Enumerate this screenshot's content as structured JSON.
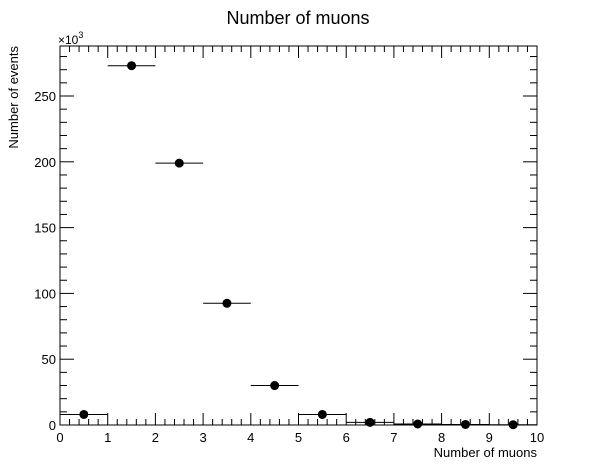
{
  "chart_data": {
    "type": "scatter",
    "title": "Number of muons",
    "xlabel": "Number of muons",
    "ylabel": "Number of events",
    "y_multiplier_base": "×10",
    "y_multiplier_exp": "3",
    "xlim": [
      0,
      10
    ],
    "ylim": [
      0,
      288
    ],
    "x_ticks": [
      "0",
      "1",
      "2",
      "3",
      "4",
      "5",
      "6",
      "7",
      "8",
      "9",
      "10"
    ],
    "y_ticks": [
      "0",
      "50",
      "100",
      "150",
      "200",
      "250"
    ],
    "grid": false,
    "legend": "none",
    "marker_color": "#000000",
    "series": [
      {
        "bin_low": [
          0,
          1,
          2,
          3,
          4,
          5,
          6,
          7,
          8,
          9
        ],
        "bin_high": [
          1,
          2,
          3,
          4,
          5,
          6,
          7,
          8,
          9,
          10
        ],
        "x": [
          0.5,
          1.5,
          2.5,
          3.5,
          4.5,
          5.5,
          6.5,
          7.5,
          8.5,
          9.5
        ],
        "y": [
          8,
          273,
          199,
          92.5,
          30,
          8,
          2,
          0.8,
          0.4,
          0.2
        ]
      }
    ]
  }
}
